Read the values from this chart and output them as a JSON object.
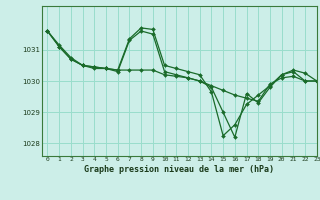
{
  "title": "Graphe pression niveau de la mer (hPa)",
  "background_color": "#cceee8",
  "grid_color": "#99ddcc",
  "line_color": "#1a6b2a",
  "marker_color": "#1a6b2a",
  "xlim": [
    -0.5,
    23
  ],
  "ylim": [
    1027.6,
    1032.4
  ],
  "yticks": [
    1028,
    1029,
    1030,
    1031
  ],
  "ytick_labels": [
    "1028",
    "1029",
    "1030",
    "1031"
  ],
  "xticks": [
    0,
    1,
    2,
    3,
    4,
    5,
    6,
    7,
    8,
    9,
    10,
    11,
    12,
    13,
    14,
    15,
    16,
    17,
    18,
    19,
    20,
    21,
    22,
    23
  ],
  "series": [
    [
      1031.6,
      1031.1,
      1030.7,
      1030.5,
      1030.4,
      1030.4,
      1030.3,
      1031.3,
      1031.6,
      1031.5,
      1030.3,
      1030.2,
      1030.1,
      1030.0,
      1029.8,
      1029.0,
      1028.2,
      1029.6,
      1029.3,
      1029.8,
      1030.2,
      1030.3,
      1030.0,
      1030.0
    ],
    [
      1031.6,
      1031.1,
      1030.7,
      1030.5,
      1030.45,
      1030.4,
      1030.35,
      1030.35,
      1030.35,
      1030.35,
      1030.2,
      1030.15,
      1030.1,
      1030.0,
      1029.85,
      1029.7,
      1029.55,
      1029.45,
      1029.35,
      1029.9,
      1030.1,
      1030.15,
      1030.0,
      1030.0
    ],
    [
      1031.6,
      1031.15,
      1030.75,
      1030.5,
      1030.45,
      1030.4,
      1030.35,
      1031.35,
      1031.7,
      1031.65,
      1030.5,
      1030.4,
      1030.3,
      1030.2,
      1029.65,
      1028.25,
      1028.6,
      1029.25,
      1029.55,
      1029.85,
      1030.2,
      1030.35,
      1030.25,
      1030.0
    ]
  ]
}
